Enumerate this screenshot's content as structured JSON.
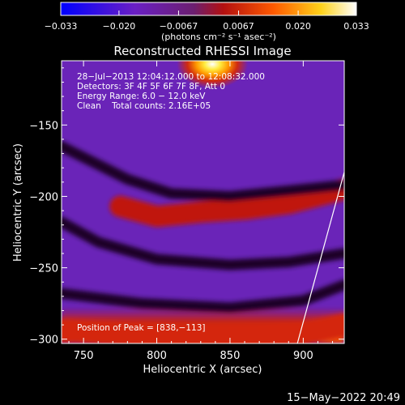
{
  "chart_data": {
    "type": "heatmap",
    "title": "Reconstructed RHESSI Image",
    "xlabel": "Heliocentric X (arcsec)",
    "ylabel": "Heliocentric Y (arcsec)",
    "xlim": [
      735,
      928
    ],
    "ylim": [
      -303,
      -105
    ],
    "x_ticks": [
      750,
      800,
      850,
      900
    ],
    "y_ticks": [
      -150,
      -200,
      -250,
      -300
    ],
    "x_tick_labels": [
      "750",
      "800",
      "850",
      "900"
    ],
    "y_tick_labels": [
      "−150",
      "−200",
      "−250",
      "−300"
    ],
    "colorbar": {
      "min": -0.033,
      "max": 0.033,
      "ticks": [
        -0.033,
        -0.02,
        -0.0067,
        0.0067,
        0.02,
        0.033
      ],
      "tick_labels": [
        "−0.033",
        "−0.020",
        "−0.0067",
        "0.0067",
        "0.020",
        "0.033"
      ],
      "unit_label": "(photons cm⁻² s⁻¹ asec⁻²)",
      "colors": [
        "#0000ff",
        "#6a1fc4",
        "#6c1f70",
        "#b31010",
        "#ff5a00",
        "#ffd21a",
        "#ffffff"
      ]
    },
    "annotations": {
      "time": "28−Jul−2013 12:04:12.000 to 12:08:32.000",
      "detectors": "Detectors: 3F 4F 5F 6F 7F 8F, Att 0",
      "energy": "Energy Range: 6.0 − 12.0 keV",
      "clean": "Clean    Total counts: 2.16E+05",
      "peak": "Position of Peak = [838,−113]"
    },
    "peak": {
      "x": 838,
      "y": -113
    },
    "limb_line": {
      "x": [
        896,
        928
      ],
      "y": [
        -303,
        -183
      ]
    },
    "structure": {
      "dark_lanes": [
        {
          "x": [
            735,
            780,
            810,
            850,
            890,
            928
          ],
          "y": [
            -165,
            -188,
            -198,
            -200,
            -196,
            -192
          ]
        },
        {
          "x": [
            735,
            760,
            800,
            850,
            890,
            928
          ],
          "y": [
            -218,
            -232,
            -244,
            -248,
            -246,
            -240
          ]
        },
        {
          "x": [
            735,
            790,
            850,
            900,
            928
          ],
          "y": [
            -268,
            -275,
            -278,
            -273,
            -262
          ]
        }
      ],
      "red_bands": [
        {
          "x": [
            775,
            800,
            830,
            860,
            890,
            928
          ],
          "y": [
            -207,
            -214,
            -211,
            -209,
            -205,
            -195
          ]
        },
        {
          "x": [
            735,
            790,
            850,
            900,
            928
          ],
          "y": [
            -294,
            -297,
            -299,
            -296,
            -290
          ]
        }
      ]
    },
    "footer_date": "15−May−2022 20:49"
  }
}
